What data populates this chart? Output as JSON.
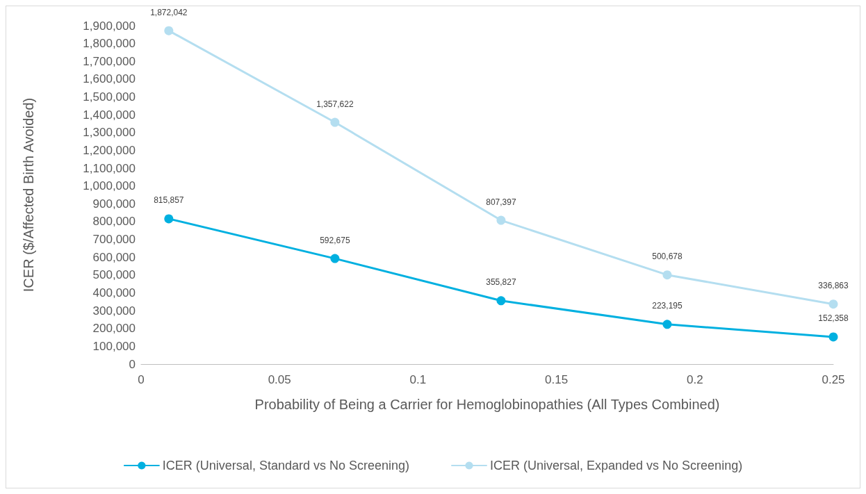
{
  "chart_data": {
    "type": "line",
    "xlabel": "Probability of Being a Carrier for Hemoglobinopathies (All Types Combined)",
    "ylabel": "ICER ($/Affected Birth Avoided)",
    "x": [
      0.01,
      0.07,
      0.13,
      0.19,
      0.25
    ],
    "series": [
      {
        "name": "ICER (Universal, Standard vs No Screening)",
        "color": "#00b0e0",
        "values": [
          815857,
          592675,
          355827,
          223195,
          152358
        ],
        "value_labels": [
          "815,857",
          "592,675",
          "355,827",
          "223,195",
          "152,358"
        ]
      },
      {
        "name": "ICER (Universal, Expanded vs No Screening)",
        "color": "#b4def0",
        "values": [
          1872042,
          1357622,
          807397,
          500678,
          336863
        ],
        "value_labels": [
          "1,872,042",
          "1,357,622",
          "807,397",
          "500,678",
          "336,863"
        ]
      }
    ],
    "xlim": [
      0,
      0.25
    ],
    "xticks": [
      0,
      0.05,
      0.1,
      0.15,
      0.2,
      0.25
    ],
    "ylim": [
      0,
      1900000
    ],
    "yticks": [
      0,
      {
        "value": 100000,
        "label": "100,000"
      },
      {
        "value": 200000,
        "label": "200,000"
      },
      {
        "value": 300000,
        "label": "300,000"
      },
      {
        "value": 400000,
        "label": "400,000"
      },
      {
        "value": 500000,
        "label": "500,000"
      },
      {
        "value": 600000,
        "label": "600,000"
      },
      {
        "value": 700000,
        "label": "700,000"
      },
      {
        "value": 800000,
        "label": "800,000"
      },
      {
        "value": 900000,
        "label": "900,000"
      },
      {
        "value": 1000000,
        "label": "1,000,000"
      },
      {
        "value": 1100000,
        "label": "1,100,000"
      },
      {
        "value": 1200000,
        "label": "1,200,000"
      },
      {
        "value": 1300000,
        "label": "1,300,000"
      },
      {
        "value": 1400000,
        "label": "1,400,000"
      },
      {
        "value": 1500000,
        "label": "1,500,000"
      },
      {
        "value": 1600000,
        "label": "1,600,000"
      },
      {
        "value": 1700000,
        "label": "1,700,000"
      },
      {
        "value": 1800000,
        "label": "1,800,000"
      },
      {
        "value": 1900000,
        "label": "1,900,000"
      }
    ],
    "grid": false,
    "legend": "bottom",
    "marker": "circle",
    "line_style": "solid"
  }
}
